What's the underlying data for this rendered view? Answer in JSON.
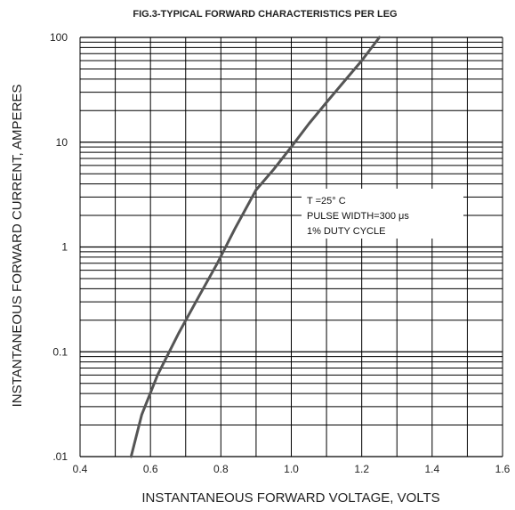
{
  "chart_data": {
    "type": "line",
    "title": "FIG.3-TYPICAL FORWARD CHARACTERISTICS PER LEG",
    "xlabel": "INSTANTANEOUS FORWARD VOLTAGE, VOLTS",
    "ylabel": "INSTANTANEOUS FORWARD CURRENT, AMPERES",
    "xlim": [
      0.4,
      1.6
    ],
    "ylim": [
      0.01,
      100
    ],
    "yscale": "log",
    "grid": true,
    "x_tick_labels": [
      "0.4",
      "0.6",
      "0.8",
      "1.0",
      "1.2",
      "1.4",
      "1.6"
    ],
    "x_tick_values": [
      0.4,
      0.6,
      0.8,
      1.0,
      1.2,
      1.4,
      1.6
    ],
    "y_tick_labels": [
      ".01",
      "0.1",
      "1",
      "10",
      "100"
    ],
    "y_tick_values": [
      0.01,
      0.1,
      1,
      10,
      100
    ],
    "series": [
      {
        "x": [
          0.545,
          0.575,
          0.62,
          0.68,
          0.74,
          0.79,
          0.84,
          0.9,
          0.95,
          1.0,
          1.05,
          1.1,
          1.15,
          1.2,
          1.25
        ],
        "y": [
          0.01,
          0.025,
          0.06,
          0.15,
          0.35,
          0.7,
          1.5,
          3.5,
          5.5,
          9,
          15,
          24,
          38,
          60,
          100
        ]
      }
    ],
    "annotation": [
      "T =25° C",
      "PULSE WIDTH=300 μs",
      "1% DUTY CYCLE"
    ],
    "colors": {
      "line": "#555555",
      "grid": "#000000"
    }
  }
}
